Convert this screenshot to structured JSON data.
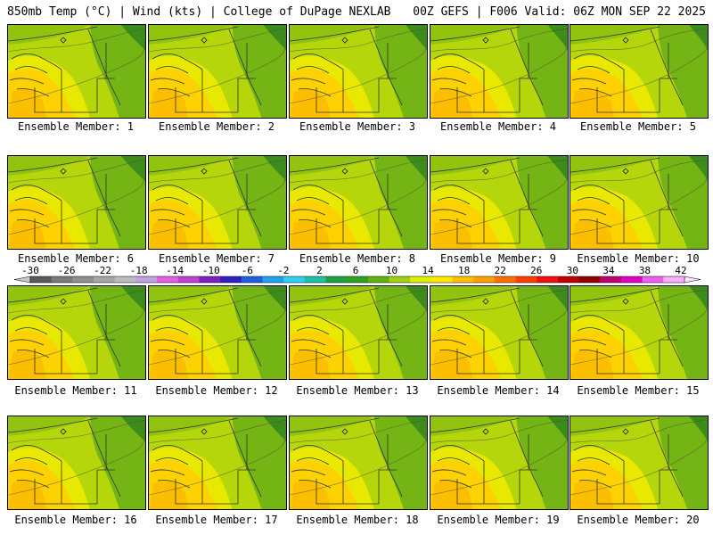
{
  "header": {
    "left": "850mb Temp (°C) | Wind (kts) | College of DuPage NEXLAB",
    "right": "00Z GEFS | F006 Valid: 06Z MON SEP 22 2025"
  },
  "members": [
    "Ensemble Member: 1",
    "Ensemble Member: 2",
    "Ensemble Member: 3",
    "Ensemble Member: 4",
    "Ensemble Member: 5",
    "Ensemble Member: 6",
    "Ensemble Member: 7",
    "Ensemble Member: 8",
    "Ensemble Member: 9",
    "Ensemble Member: 10",
    "Ensemble Member: 11",
    "Ensemble Member: 12",
    "Ensemble Member: 13",
    "Ensemble Member: 14",
    "Ensemble Member: 15",
    "Ensemble Member: 16",
    "Ensemble Member: 17",
    "Ensemble Member: 18",
    "Ensemble Member: 19",
    "Ensemble Member: 20"
  ],
  "colorbar": {
    "labels": [
      "-30",
      "-26",
      "-22",
      "-18",
      "-14",
      "-10",
      "-6",
      "-2",
      "2",
      "6",
      "10",
      "14",
      "18",
      "22",
      "26",
      "30",
      "34",
      "38",
      "42"
    ],
    "colors": [
      "#5a5a5a",
      "#7a7a7a",
      "#8f8f8f",
      "#a6a6a6",
      "#bcbcbc",
      "#c0a0e0",
      "#e060e0",
      "#c040d0",
      "#8020c0",
      "#3020c0",
      "#2060e0",
      "#20a0f0",
      "#30d0f0",
      "#20c0a0",
      "#20a040",
      "#30a020",
      "#60b010",
      "#a0d010",
      "#e0ef00",
      "#ffe800",
      "#ffc000",
      "#ffa000",
      "#ff7000",
      "#ff4000",
      "#f01010",
      "#c00000",
      "#900000",
      "#c00070",
      "#e000c0",
      "#f060f0",
      "#f8b0f8"
    ],
    "min_color": "#c8c8c8",
    "max_color": "#fce0fc"
  },
  "map_colors": {
    "warm": "#fdd200",
    "mid": "#e8e800",
    "cool": "#b4d60a",
    "cold": "#74b414",
    "coldest": "#3c8c1c"
  }
}
